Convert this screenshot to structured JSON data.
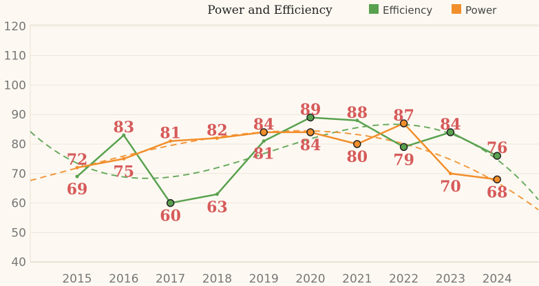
{
  "chart_data": {
    "type": "line",
    "title": "Power and Efficiency",
    "xlabel": "",
    "ylabel": "",
    "categories": [
      "2015",
      "2016",
      "2017",
      "2018",
      "2019",
      "2020",
      "2021",
      "2022",
      "2023",
      "2024"
    ],
    "ylim": [
      35,
      122
    ],
    "yticks": [
      40,
      50,
      60,
      70,
      80,
      90,
      100,
      110,
      120
    ],
    "grid": "horizontal",
    "legend_position": "top-right",
    "series": [
      {
        "name": "Efficiency",
        "color": "#59a14f",
        "values": [
          69,
          83,
          60,
          63,
          81,
          89,
          88,
          79,
          84,
          76
        ],
        "labels": [
          "69",
          "83",
          "60",
          "63",
          "81",
          "89",
          "88",
          "79",
          "84",
          "76"
        ],
        "trendline": "polynomial"
      },
      {
        "name": "Power",
        "color": "#f28e2b",
        "values": [
          72,
          75,
          81,
          82,
          84,
          84,
          80,
          87,
          70,
          68
        ],
        "labels": [
          "72",
          "75",
          "81",
          "82",
          "84",
          "84",
          "80",
          "87",
          "70",
          "68"
        ],
        "trendline": "polynomial"
      }
    ]
  }
}
